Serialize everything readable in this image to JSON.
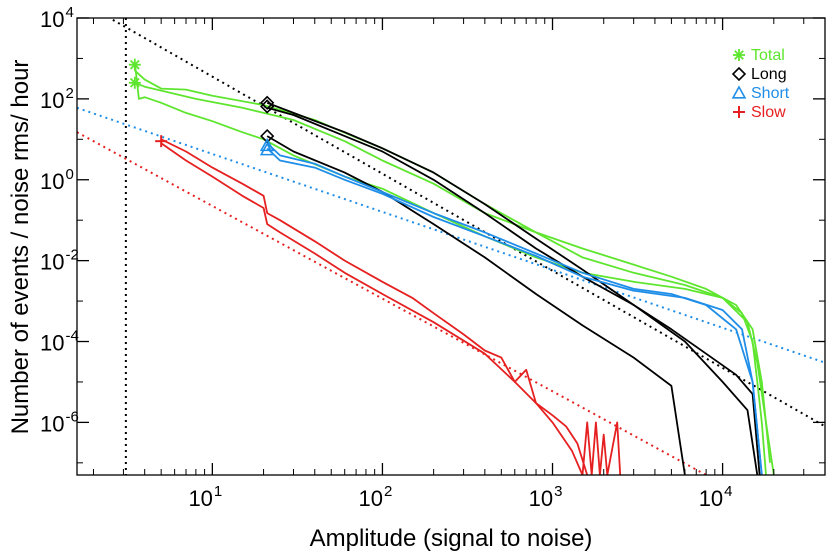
{
  "chart_data": {
    "type": "line",
    "title": "",
    "xlabel": "Amplitude (signal to noise)",
    "ylabel": "Number of events / noise rms/ hour",
    "xscale": "log",
    "yscale": "log",
    "xlim": [
      1.6,
      40000
    ],
    "ylim": [
      5e-08,
      10000
    ],
    "x_ticks": [
      {
        "value": 10,
        "base": "10",
        "exp": "1"
      },
      {
        "value": 100,
        "base": "10",
        "exp": "2"
      },
      {
        "value": 1000,
        "base": "10",
        "exp": "3"
      },
      {
        "value": 10000,
        "base": "10",
        "exp": "4"
      }
    ],
    "y_ticks": [
      {
        "value": 10000,
        "base": "10",
        "exp": "4"
      },
      {
        "value": 100,
        "base": "10",
        "exp": "2"
      },
      {
        "value": 1,
        "base": "10",
        "exp": "0"
      },
      {
        "value": 0.01,
        "base": "10",
        "exp": "-2"
      },
      {
        "value": 0.0001,
        "base": "10",
        "exp": "-4"
      },
      {
        "value": 1e-06,
        "base": "10",
        "exp": "-6"
      }
    ],
    "legend_position": "top-right",
    "legend": [
      {
        "label": "Total",
        "color": "#5ee62e",
        "marker": "asterisk"
      },
      {
        "label": "Long",
        "color": "#000000",
        "marker": "diamond"
      },
      {
        "label": "Short",
        "color": "#1f8ee8",
        "marker": "triangle"
      },
      {
        "label": "Slow",
        "color": "#e62020",
        "marker": "plus"
      }
    ],
    "vertical_threshold": {
      "x": 3.1,
      "color": "#000000"
    },
    "fit_lines": [
      {
        "name": "Total fit",
        "color": "#000000",
        "points": [
          [
            2.6,
            9000
          ],
          [
            40000,
            8e-07
          ]
        ]
      },
      {
        "name": "Short fit",
        "color": "#1f8ee8",
        "points": [
          [
            1.6,
            60
          ],
          [
            40000,
            3e-05
          ]
        ]
      },
      {
        "name": "Slow fit",
        "color": "#e62020",
        "points": [
          [
            1.6,
            15
          ],
          [
            8000,
            5e-08
          ]
        ]
      }
    ],
    "series": [
      {
        "name": "Total",
        "color": "#5ee62e",
        "points": [
          [
            3.5,
            250
          ],
          [
            4,
            200
          ],
          [
            5,
            160
          ],
          [
            8,
            100
          ],
          [
            15,
            60
          ],
          [
            30,
            30
          ],
          [
            60,
            9
          ],
          [
            100,
            3
          ],
          [
            200,
            0.8
          ],
          [
            400,
            0.15
          ],
          [
            800,
            0.05
          ],
          [
            1500,
            0.02
          ],
          [
            3000,
            0.008
          ],
          [
            5000,
            0.004
          ],
          [
            8000,
            0.002
          ],
          [
            12000,
            0.0008
          ],
          [
            15000,
            0.0002
          ],
          [
            17000,
            1e-05
          ],
          [
            19000,
            1e-07
          ]
        ]
      },
      {
        "name": "Total",
        "color": "#5ee62e",
        "points": [
          [
            3.5,
            500
          ],
          [
            4,
            300
          ],
          [
            5,
            180
          ],
          [
            7,
            170
          ],
          [
            10,
            120
          ],
          [
            20,
            70
          ],
          [
            40,
            30
          ],
          [
            70,
            11
          ],
          [
            100,
            6
          ],
          [
            200,
            1.5
          ],
          [
            400,
            0.25
          ],
          [
            800,
            0.05
          ],
          [
            1500,
            0.012
          ],
          [
            3000,
            0.005
          ],
          [
            6000,
            0.0025
          ],
          [
            10000,
            0.0012
          ],
          [
            14000,
            0.0003
          ],
          [
            16000,
            3e-05
          ],
          [
            18000,
            1e-06
          ],
          [
            20000,
            5e-08
          ]
        ]
      },
      {
        "name": "Total",
        "color": "#5ee62e",
        "points": [
          [
            3.5,
            800
          ],
          [
            3.7,
            100
          ],
          [
            4,
            110
          ],
          [
            5,
            80
          ],
          [
            7,
            45
          ],
          [
            10,
            28
          ],
          [
            15,
            15
          ],
          [
            20,
            10
          ],
          [
            30,
            4
          ],
          [
            60,
            1.2
          ],
          [
            100,
            0.6
          ],
          [
            200,
            0.15
          ],
          [
            400,
            0.04
          ],
          [
            800,
            0.012
          ],
          [
            1500,
            0.005
          ],
          [
            3000,
            0.003
          ],
          [
            6000,
            0.002
          ],
          [
            10000,
            0.0012
          ],
          [
            13000,
            0.0005
          ],
          [
            15000,
            0.0001
          ],
          [
            16000,
            1e-05
          ],
          [
            17000,
            1e-06
          ],
          [
            18000,
            5e-08
          ]
        ]
      },
      {
        "name": "Long",
        "color": "#000000",
        "points": [
          [
            21,
            80
          ],
          [
            30,
            45
          ],
          [
            60,
            15
          ],
          [
            100,
            6
          ],
          [
            200,
            1.5
          ],
          [
            400,
            0.25
          ],
          [
            800,
            0.035
          ],
          [
            1500,
            0.006
          ],
          [
            3000,
            0.0008
          ],
          [
            5000,
            0.0002
          ],
          [
            8000,
            5e-05
          ],
          [
            12000,
            1.5e-05
          ],
          [
            15000,
            5e-06
          ],
          [
            16500,
            5e-08
          ]
        ]
      },
      {
        "name": "Long",
        "color": "#000000",
        "points": [
          [
            21,
            60
          ],
          [
            30,
            40
          ],
          [
            60,
            12
          ],
          [
            100,
            5
          ],
          [
            200,
            1
          ],
          [
            400,
            0.15
          ],
          [
            800,
            0.02
          ],
          [
            1500,
            0.004
          ],
          [
            3000,
            0.0008
          ],
          [
            6000,
            0.0001
          ],
          [
            10000,
            1e-05
          ],
          [
            14000,
            2e-06
          ],
          [
            16000,
            5e-08
          ]
        ]
      },
      {
        "name": "Long",
        "color": "#000000",
        "points": [
          [
            21,
            12
          ],
          [
            30,
            5
          ],
          [
            60,
            1.5
          ],
          [
            100,
            0.5
          ],
          [
            200,
            0.08
          ],
          [
            400,
            0.012
          ],
          [
            800,
            0.0015
          ],
          [
            1500,
            0.00025
          ],
          [
            3000,
            4e-05
          ],
          [
            5000,
            8e-06
          ],
          [
            6000,
            5e-08
          ]
        ]
      },
      {
        "name": "Short",
        "color": "#1f8ee8",
        "points": [
          [
            21,
            8
          ],
          [
            25,
            4
          ],
          [
            40,
            2.5
          ],
          [
            60,
            1.2
          ],
          [
            100,
            0.5
          ],
          [
            200,
            0.15
          ],
          [
            400,
            0.05
          ],
          [
            800,
            0.015
          ],
          [
            1500,
            0.005
          ],
          [
            3000,
            0.002
          ],
          [
            5000,
            0.0015
          ],
          [
            8000,
            0.0008
          ],
          [
            12000,
            0.0002
          ],
          [
            15000,
            1e-05
          ],
          [
            17000,
            5e-08
          ]
        ]
      },
      {
        "name": "Short",
        "color": "#1f8ee8",
        "points": [
          [
            21,
            6
          ],
          [
            25,
            3
          ],
          [
            40,
            2
          ],
          [
            60,
            1
          ],
          [
            100,
            0.45
          ],
          [
            200,
            0.12
          ],
          [
            400,
            0.04
          ],
          [
            800,
            0.013
          ],
          [
            1500,
            0.004
          ],
          [
            3000,
            0.0018
          ],
          [
            6000,
            0.0012
          ],
          [
            10000,
            0.0006
          ],
          [
            13000,
            0.0002
          ],
          [
            15000,
            1e-05
          ],
          [
            17000,
            5e-08
          ]
        ]
      },
      {
        "name": "Slow",
        "color": "#e62020",
        "points": [
          [
            5,
            8
          ],
          [
            7,
            3
          ],
          [
            10,
            1.2
          ],
          [
            15,
            0.4
          ],
          [
            20,
            0.2
          ],
          [
            21,
            0.08
          ],
          [
            25,
            0.05
          ],
          [
            40,
            0.015
          ],
          [
            60,
            0.005
          ],
          [
            100,
            0.0015
          ],
          [
            200,
            0.0003
          ],
          [
            400,
            5e-05
          ],
          [
            600,
            1e-05
          ],
          [
            800,
            3e-06
          ],
          [
            1000,
            1e-06
          ],
          [
            1300,
            2e-07
          ],
          [
            1500,
            5e-08
          ]
        ]
      },
      {
        "name": "Slow",
        "color": "#e62020",
        "points": [
          [
            5,
            10
          ],
          [
            7,
            5
          ],
          [
            10,
            2
          ],
          [
            15,
            0.8
          ],
          [
            20,
            0.4
          ],
          [
            21,
            0.15
          ],
          [
            25,
            0.1
          ],
          [
            40,
            0.03
          ],
          [
            60,
            0.01
          ],
          [
            100,
            0.003
          ],
          [
            150,
            0.0012
          ],
          [
            200,
            0.0005
          ],
          [
            300,
            0.00015
          ],
          [
            400,
            6e-05
          ],
          [
            500,
            4e-05
          ],
          [
            600,
            1e-05
          ],
          [
            700,
            2e-05
          ],
          [
            800,
            3e-06
          ],
          [
            1000,
            1.5e-06
          ],
          [
            1200,
            8e-07
          ],
          [
            1400,
            3e-07
          ],
          [
            1600,
            5e-08
          ]
        ]
      },
      {
        "name": "Slow",
        "color": "#e62020",
        "points": [
          [
            1500,
            5e-08
          ],
          [
            1600,
            1e-06
          ],
          [
            1700,
            5e-08
          ],
          [
            1800,
            1e-06
          ],
          [
            1900,
            5e-08
          ],
          [
            2000,
            5e-07
          ],
          [
            2100,
            5e-08
          ],
          [
            2400,
            1e-06
          ],
          [
            2500,
            5e-08
          ]
        ]
      }
    ],
    "markers": [
      {
        "series": "Total",
        "marker": "asterisk",
        "color": "#5ee62e",
        "points": [
          [
            3.5,
            700
          ],
          [
            3.5,
            250
          ]
        ]
      },
      {
        "series": "Long",
        "marker": "diamond",
        "color": "#000000",
        "points": [
          [
            21,
            80
          ],
          [
            21,
            65
          ],
          [
            21,
            12
          ]
        ]
      },
      {
        "series": "Short",
        "marker": "triangle",
        "color": "#1f8ee8",
        "points": [
          [
            21,
            7
          ],
          [
            21,
            5.5
          ]
        ]
      },
      {
        "series": "Slow",
        "marker": "plus",
        "color": "#e62020",
        "points": [
          [
            5,
            9
          ]
        ]
      }
    ]
  }
}
